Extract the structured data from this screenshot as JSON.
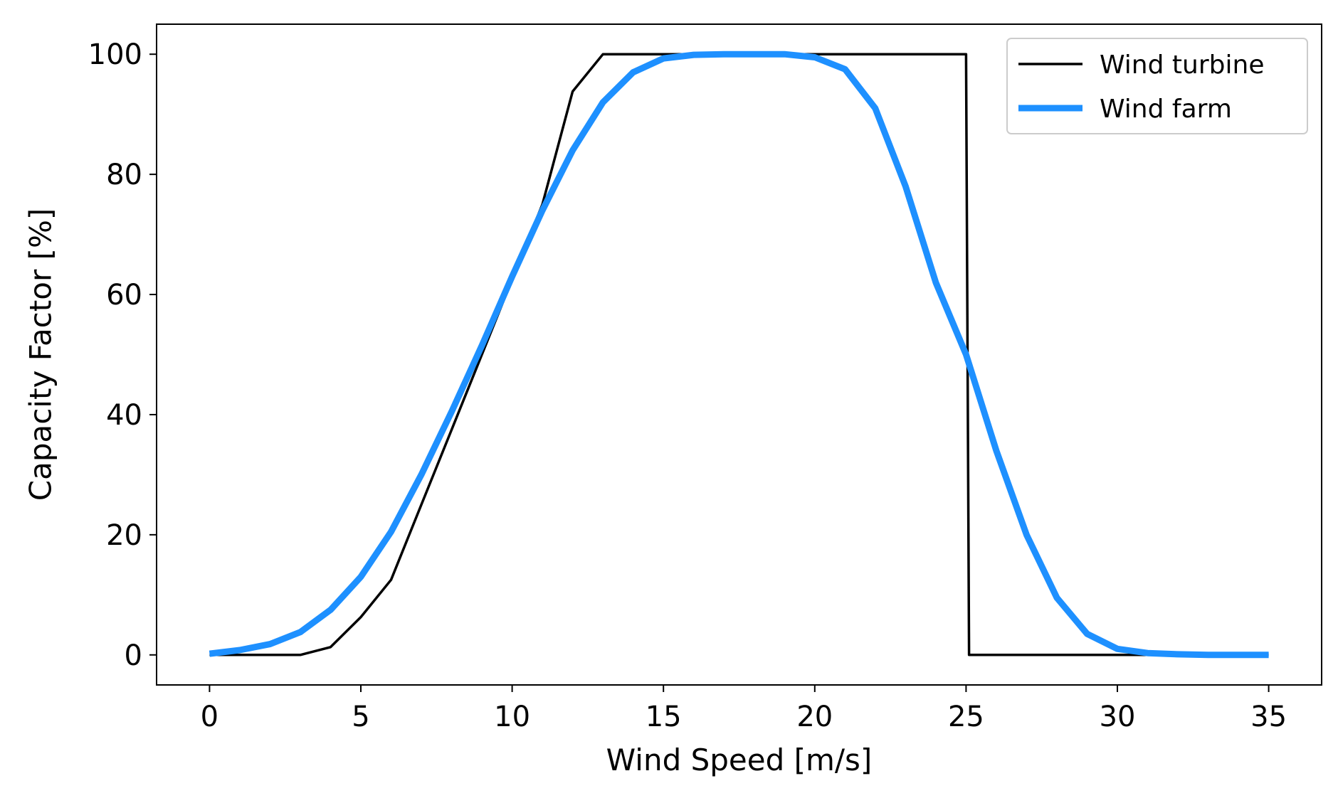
{
  "chart_data": {
    "type": "line",
    "title": "",
    "xlabel": "Wind Speed [m/s]",
    "ylabel": "Capacity Factor [%]",
    "xlim": [
      -1.75,
      36.75
    ],
    "ylim": [
      -5,
      105
    ],
    "xticks": [
      0,
      5,
      10,
      15,
      20,
      25,
      30,
      35
    ],
    "yticks": [
      0,
      20,
      40,
      60,
      80,
      100
    ],
    "xtick_labels": [
      "0",
      "5",
      "10",
      "15",
      "20",
      "25",
      "30",
      "35"
    ],
    "ytick_labels": [
      "0",
      "20",
      "40",
      "60",
      "80",
      "100"
    ],
    "grid": false,
    "legend": {
      "position": "top-right",
      "entries": [
        "Wind turbine",
        "Wind farm"
      ]
    },
    "series": [
      {
        "name": "Wind turbine",
        "color": "#000000",
        "x": [
          0,
          3,
          4,
          5,
          6,
          7,
          8,
          9,
          10,
          11,
          12,
          13,
          25,
          25.1,
          35
        ],
        "y": [
          0,
          0,
          1.3,
          6.3,
          12.5,
          25,
          37.5,
          50,
          62.5,
          75,
          93.8,
          100,
          100,
          0,
          0
        ]
      },
      {
        "name": "Wind farm",
        "color": "#1E90FF",
        "x": [
          0,
          1,
          2,
          3,
          4,
          5,
          6,
          7,
          8,
          9,
          10,
          11,
          12,
          13,
          14,
          15,
          16,
          17,
          18,
          19,
          20,
          21,
          22,
          23,
          24,
          25,
          26,
          27,
          28,
          29,
          30,
          31,
          32,
          33,
          34,
          35
        ],
        "y": [
          0.2,
          0.8,
          1.8,
          3.8,
          7.5,
          13,
          20.5,
          30,
          40.5,
          51.5,
          63,
          74,
          84,
          92,
          97,
          99.3,
          99.9,
          100,
          100,
          100,
          99.5,
          97.5,
          91,
          78,
          62,
          50,
          34,
          20,
          9.5,
          3.5,
          1,
          0.3,
          0.1,
          0,
          0,
          0
        ]
      }
    ]
  }
}
